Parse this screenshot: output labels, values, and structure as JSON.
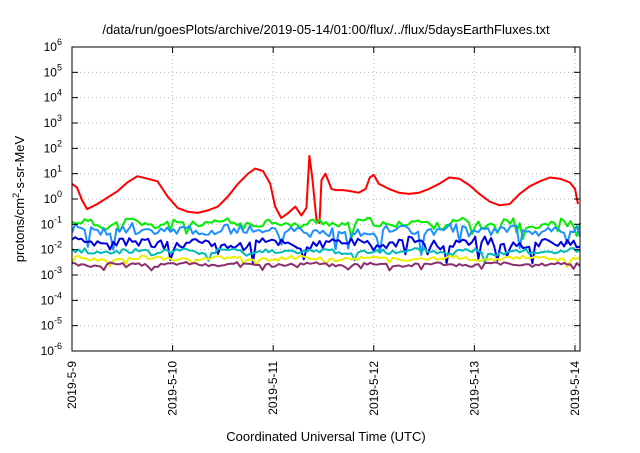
{
  "chart_data": {
    "type": "line",
    "title": "/data/run/goesPlots/archive/2019-05-14/01:00/flux/../flux/5daysEarthFluxes.txt",
    "xlabel": "Coordinated Universal Time (UTC)",
    "ylabel": {
      "base": "protons/cm",
      "sup": "2",
      "rest": "-s-sr-MeV"
    },
    "x_ticks": [
      "2019-5-9",
      "2019-5-10",
      "2019-5-11",
      "2019-5-12",
      "2019-5-13",
      "2019-5-14"
    ],
    "x_range_days": [
      0,
      5.05
    ],
    "y_scale": "log",
    "ylim": [
      1e-06,
      1000000.0
    ],
    "y_ticks": [
      {
        "base": "10",
        "exp": "-6"
      },
      {
        "base": "10",
        "exp": "-5"
      },
      {
        "base": "10",
        "exp": "-4"
      },
      {
        "base": "10",
        "exp": "-3"
      },
      {
        "base": "10",
        "exp": "-2"
      },
      {
        "base": "10",
        "exp": "-1"
      },
      {
        "base": "10",
        "exp": "0"
      },
      {
        "base": "10",
        "exp": "1"
      },
      {
        "base": "10",
        "exp": "2"
      },
      {
        "base": "10",
        "exp": "3"
      },
      {
        "base": "10",
        "exp": "4"
      },
      {
        "base": "10",
        "exp": "5"
      },
      {
        "base": "10",
        "exp": "6"
      }
    ],
    "grid": true,
    "series": [
      {
        "color": "#ff0000",
        "points": [
          [
            0,
            0.6
          ],
          [
            0.05,
            0.45
          ],
          [
            0.1,
            -0.05
          ],
          [
            0.15,
            -0.4
          ],
          [
            0.25,
            -0.2
          ],
          [
            0.35,
            0.05
          ],
          [
            0.45,
            0.3
          ],
          [
            0.55,
            0.65
          ],
          [
            0.65,
            0.9
          ],
          [
            0.75,
            0.8
          ],
          [
            0.85,
            0.7
          ],
          [
            0.95,
            0.1
          ],
          [
            1.05,
            -0.35
          ],
          [
            1.15,
            -0.5
          ],
          [
            1.25,
            -0.55
          ],
          [
            1.35,
            -0.45
          ],
          [
            1.45,
            -0.3
          ],
          [
            1.55,
            0.1
          ],
          [
            1.65,
            0.6
          ],
          [
            1.75,
            1.0
          ],
          [
            1.82,
            1.2
          ],
          [
            1.9,
            1.1
          ],
          [
            1.97,
            0.6
          ],
          [
            2.02,
            -0.3
          ],
          [
            2.08,
            -0.75
          ],
          [
            2.15,
            -0.55
          ],
          [
            2.22,
            -0.3
          ],
          [
            2.28,
            -0.65
          ],
          [
            2.33,
            -0.35
          ],
          [
            2.36,
            1.7
          ],
          [
            2.39,
            0.8
          ],
          [
            2.43,
            -0.8
          ],
          [
            2.46,
            -0.95
          ],
          [
            2.48,
            0.75
          ],
          [
            2.52,
            1.0
          ],
          [
            2.58,
            0.4
          ],
          [
            2.62,
            0.35
          ],
          [
            2.7,
            0.35
          ],
          [
            2.78,
            0.3
          ],
          [
            2.85,
            0.25
          ],
          [
            2.92,
            0.4
          ],
          [
            2.96,
            0.85
          ],
          [
            3.0,
            0.95
          ],
          [
            3.05,
            0.6
          ],
          [
            3.15,
            0.4
          ],
          [
            3.25,
            0.25
          ],
          [
            3.35,
            0.2
          ],
          [
            3.45,
            0.25
          ],
          [
            3.55,
            0.4
          ],
          [
            3.65,
            0.6
          ],
          [
            3.75,
            0.85
          ],
          [
            3.85,
            0.8
          ],
          [
            3.95,
            0.55
          ],
          [
            4.05,
            0.2
          ],
          [
            4.15,
            -0.1
          ],
          [
            4.25,
            -0.25
          ],
          [
            4.35,
            -0.2
          ],
          [
            4.45,
            0.2
          ],
          [
            4.55,
            0.5
          ],
          [
            4.65,
            0.7
          ],
          [
            4.75,
            0.85
          ],
          [
            4.85,
            0.8
          ],
          [
            4.95,
            0.65
          ],
          [
            5.0,
            0.4
          ],
          [
            5.03,
            -0.2
          ]
        ]
      },
      {
        "color": "#00ee00",
        "base": -0.97,
        "amp": 0.1,
        "noise": 0.28,
        "freq": 13.3,
        "phase": 0.3,
        "seed": 11
      },
      {
        "color": "#1e90ff",
        "base": -1.25,
        "amp": 0.1,
        "noise": 0.45,
        "freq": 11.7,
        "phase": 1.1,
        "seed": 23
      },
      {
        "color": "#0000dd",
        "base": -1.75,
        "amp": 0.1,
        "noise": 0.38,
        "freq": 9.1,
        "phase": 2.2,
        "seed": 37
      },
      {
        "color": "#00bbbb",
        "base": -2.08,
        "amp": 0.06,
        "noise": 0.22,
        "freq": 12.9,
        "phase": 0.7,
        "seed": 41
      },
      {
        "color": "#eeee00",
        "base": -2.35,
        "amp": 0.05,
        "noise": 0.14,
        "freq": 8.3,
        "phase": 1.7,
        "seed": 53
      },
      {
        "color": "#8b2f6f",
        "base": -2.58,
        "amp": 0.05,
        "noise": 0.12,
        "freq": 10.1,
        "phase": 2.9,
        "seed": 67
      }
    ]
  }
}
